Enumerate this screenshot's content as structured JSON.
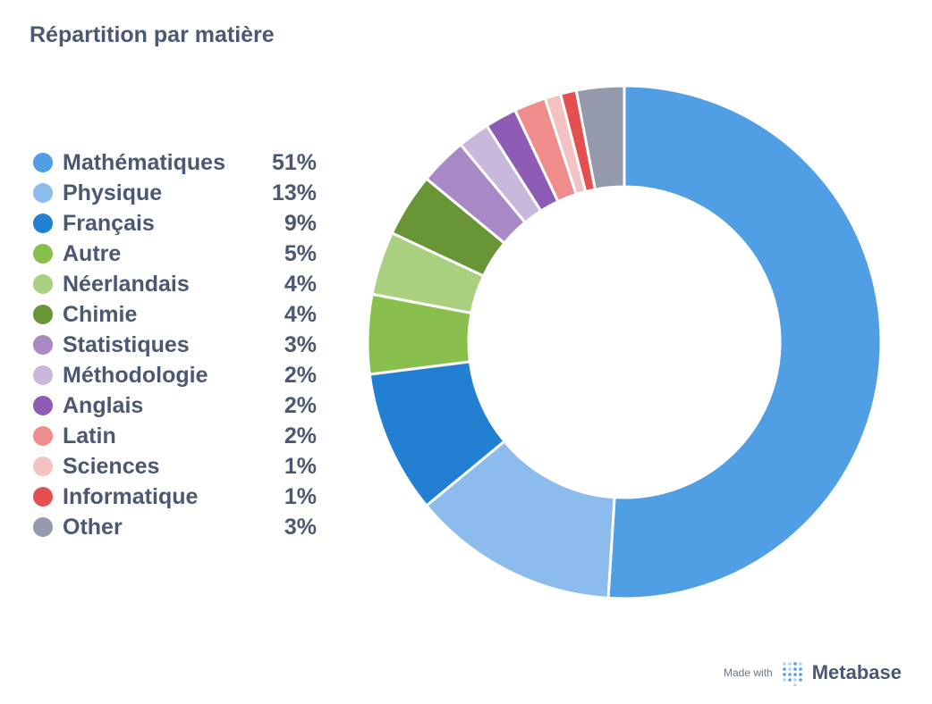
{
  "title": "Répartition par matière",
  "chart_data": {
    "type": "pie",
    "title": "Répartition par matière",
    "donut": true,
    "legend_placement": "left",
    "start_angle_deg": 0,
    "slices": [
      {
        "label": "Mathématiques",
        "value": 51,
        "display": "51%",
        "color": "#509ee3"
      },
      {
        "label": "Physique",
        "value": 13,
        "display": "13%",
        "color": "#8cbcee"
      },
      {
        "label": "Français",
        "value": 9,
        "display": "9%",
        "color": "#227fd2"
      },
      {
        "label": "Autre",
        "value": 5,
        "display": "5%",
        "color": "#88bf4d"
      },
      {
        "label": "Néerlandais",
        "value": 4,
        "display": "4%",
        "color": "#a9d07f"
      },
      {
        "label": "Chimie",
        "value": 4,
        "display": "4%",
        "color": "#689636"
      },
      {
        "label": "Statistiques",
        "value": 3,
        "display": "3%",
        "color": "#a989c5"
      },
      {
        "label": "Méthodologie",
        "value": 2,
        "display": "2%",
        "color": "#c9b7dc"
      },
      {
        "label": "Anglais",
        "value": 2,
        "display": "2%",
        "color": "#8e5cb5"
      },
      {
        "label": "Latin",
        "value": 2,
        "display": "2%",
        "color": "#ef8c8c"
      },
      {
        "label": "Sciences",
        "value": 1,
        "display": "1%",
        "color": "#f4c2c2"
      },
      {
        "label": "Informatique",
        "value": 1,
        "display": "1%",
        "color": "#e44f4f"
      },
      {
        "label": "Other",
        "value": 3,
        "display": "3%",
        "color": "#949aab"
      }
    ]
  },
  "footer": {
    "made_with": "Made with",
    "brand": "Metabase"
  }
}
